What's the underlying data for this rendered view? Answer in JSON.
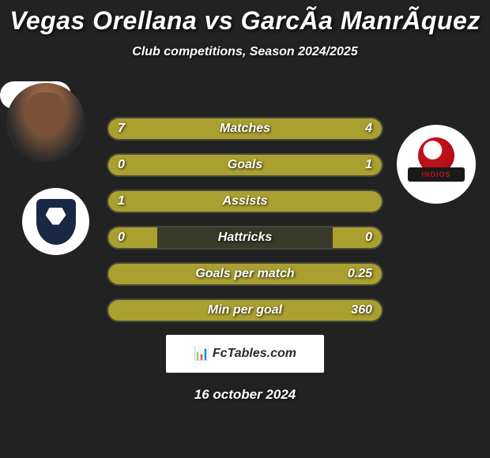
{
  "title": "Vegas Orellana vs GarcÃa ManrÃquez",
  "subtitle": "Club competitions, Season 2024/2025",
  "club_right_text": "INDIOS",
  "credit": {
    "icon": "📊",
    "text": "FcTables.com"
  },
  "date": "16 october 2024",
  "bar_style": {
    "fill_color": "#aaa030",
    "bg_color": "#3a3a2a",
    "border_color": "#4a4a3a",
    "label_fontsize": 16,
    "value_fontsize": 16,
    "text_color": "#ffffff",
    "body_bg": "#212221"
  },
  "bars": [
    {
      "label": "Matches",
      "left": "7",
      "right": "4",
      "left_pct": 60,
      "right_pct": 40
    },
    {
      "label": "Goals",
      "left": "0",
      "right": "1",
      "left_pct": 18,
      "right_pct": 100
    },
    {
      "label": "Assists",
      "left": "1",
      "right": "",
      "left_pct": 100,
      "right_pct": 0
    },
    {
      "label": "Hattricks",
      "left": "0",
      "right": "0",
      "left_pct": 18,
      "right_pct": 18
    },
    {
      "label": "Goals per match",
      "left": "",
      "right": "0.25",
      "left_pct": 0,
      "right_pct": 100
    },
    {
      "label": "Min per goal",
      "left": "",
      "right": "360",
      "left_pct": 0,
      "right_pct": 100
    }
  ]
}
